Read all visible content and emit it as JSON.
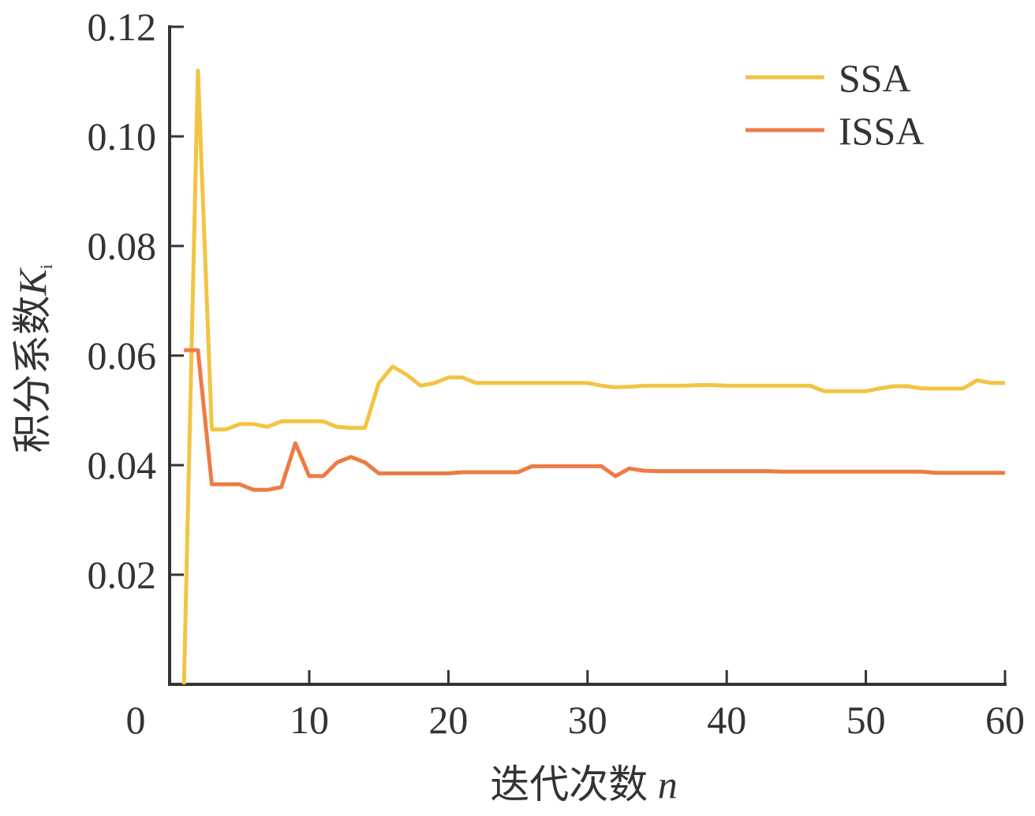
{
  "chart_data": {
    "type": "line",
    "title": "",
    "xlabel": "迭代次数 n",
    "xlabel_text": "迭代次数",
    "xlabel_var": "n",
    "ylabel_text": "积分系数",
    "ylabel_var": "K",
    "ylabel_sub": "i",
    "xlim": [
      0,
      60
    ],
    "ylim": [
      0,
      0.12
    ],
    "xticks": [
      "0",
      "10",
      "20",
      "30",
      "40",
      "50",
      "60"
    ],
    "xtick_values": [
      0,
      10,
      20,
      30,
      40,
      50,
      60
    ],
    "yticks": [
      "0.02",
      "0.04",
      "0.06",
      "0.08",
      "0.10",
      "0.12"
    ],
    "ytick_values": [
      0.02,
      0.04,
      0.06,
      0.08,
      0.1,
      0.12
    ],
    "grid": false,
    "legend_position": "top-right",
    "x": [
      1,
      2,
      3,
      4,
      5,
      6,
      7,
      8,
      9,
      10,
      11,
      12,
      13,
      14,
      15,
      16,
      17,
      18,
      19,
      20,
      21,
      22,
      23,
      24,
      25,
      26,
      27,
      28,
      29,
      30,
      31,
      32,
      33,
      34,
      35,
      36,
      37,
      38,
      39,
      40,
      41,
      42,
      43,
      44,
      45,
      46,
      47,
      48,
      49,
      50,
      51,
      52,
      53,
      54,
      55,
      56,
      57,
      58,
      59,
      60
    ],
    "series": [
      {
        "name": "SSA",
        "color": "#F2C443",
        "values": [
          0.0,
          0.112,
          0.0465,
          0.0465,
          0.0475,
          0.0475,
          0.047,
          0.048,
          0.048,
          0.048,
          0.048,
          0.047,
          0.0468,
          0.0468,
          0.055,
          0.058,
          0.0565,
          0.0545,
          0.055,
          0.056,
          0.056,
          0.055,
          0.055,
          0.055,
          0.055,
          0.055,
          0.055,
          0.055,
          0.055,
          0.055,
          0.0545,
          0.0542,
          0.0543,
          0.0545,
          0.0545,
          0.0545,
          0.0545,
          0.0546,
          0.0546,
          0.0545,
          0.0545,
          0.0545,
          0.0545,
          0.0545,
          0.0545,
          0.0545,
          0.0535,
          0.0535,
          0.0535,
          0.0535,
          0.054,
          0.0544,
          0.0544,
          0.054,
          0.054,
          0.054,
          0.054,
          0.0555,
          0.055,
          0.055
        ]
      },
      {
        "name": "ISSA",
        "color": "#EE7B44",
        "values": [
          0.061,
          0.061,
          0.0365,
          0.0365,
          0.0365,
          0.0355,
          0.0355,
          0.036,
          0.044,
          0.038,
          0.038,
          0.0405,
          0.0415,
          0.0405,
          0.0385,
          0.0385,
          0.0385,
          0.0385,
          0.0385,
          0.0385,
          0.0387,
          0.0387,
          0.0387,
          0.0387,
          0.0387,
          0.0398,
          0.0398,
          0.0398,
          0.0398,
          0.0398,
          0.0398,
          0.038,
          0.0394,
          0.039,
          0.0389,
          0.0389,
          0.0389,
          0.0389,
          0.0389,
          0.0389,
          0.0389,
          0.0389,
          0.0389,
          0.0388,
          0.0388,
          0.0388,
          0.0388,
          0.0388,
          0.0388,
          0.0388,
          0.0388,
          0.0388,
          0.0388,
          0.0388,
          0.0386,
          0.0386,
          0.0386,
          0.0386,
          0.0386,
          0.0386
        ]
      }
    ]
  }
}
